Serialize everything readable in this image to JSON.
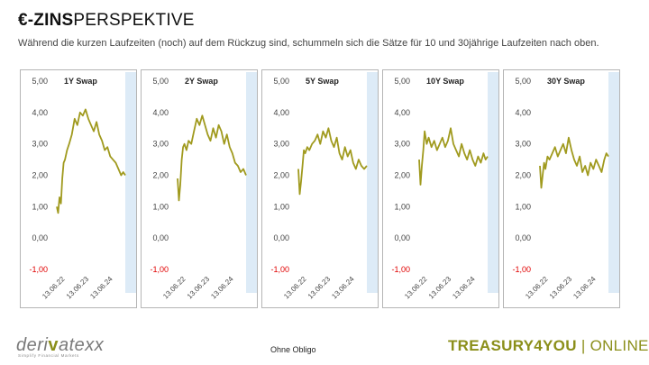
{
  "header": {
    "title_bold": "€-ZINS",
    "title_rest": "PERSPEKTIVE",
    "subtitle": "Während die kurzen Laufzeiten (noch) auf dem Rückzug sind, schummeln sich die Sätze für 10 und 30jährige Laufzeiten nach oben."
  },
  "footer": {
    "logo_pre": "deri",
    "logo_v": "v",
    "logo_post": "atexx",
    "logo_tagline": "Simplify Financial Markets",
    "center": "Ohne Obligo",
    "brand": "TREASURY4YOU",
    "separator": "|",
    "online": "ONLINE"
  },
  "colors": {
    "line": "#a09a1e",
    "forecast_band": "#ddebf7",
    "negative_tick": "#e00000",
    "axis_text": "#444444"
  },
  "chart_data": [
    {
      "type": "line",
      "title": "1Y Swap",
      "ylim": [
        -1,
        5
      ],
      "yticks": [
        5,
        4,
        3,
        2,
        1,
        0,
        -1
      ],
      "ytick_labels": [
        "5,00",
        "4,00",
        "3,00",
        "2,00",
        "1,00",
        "0,00",
        "-1,00"
      ],
      "xticks": [
        "13.06.22",
        "13.06.23",
        "13.06.24"
      ],
      "x": [
        0,
        0.02,
        0.04,
        0.06,
        0.08,
        0.1,
        0.12,
        0.15,
        0.18,
        0.22,
        0.26,
        0.3,
        0.34,
        0.38,
        0.42,
        0.46,
        0.5,
        0.54,
        0.58,
        0.62,
        0.66,
        0.7,
        0.74,
        0.78,
        0.82,
        0.86,
        0.9,
        0.94,
        0.97,
        1.0
      ],
      "values": [
        1.0,
        0.8,
        1.3,
        1.1,
        1.9,
        2.4,
        2.5,
        2.8,
        3.0,
        3.3,
        3.8,
        3.6,
        4.0,
        3.9,
        4.1,
        3.8,
        3.6,
        3.4,
        3.7,
        3.3,
        3.1,
        2.8,
        2.9,
        2.6,
        2.5,
        2.4,
        2.2,
        2.0,
        2.1,
        2.0
      ]
    },
    {
      "type": "line",
      "title": "2Y Swap",
      "ylim": [
        -1,
        5
      ],
      "yticks": [
        5,
        4,
        3,
        2,
        1,
        0,
        -1
      ],
      "ytick_labels": [
        "5,00",
        "4,00",
        "3,00",
        "2,00",
        "1,00",
        "0,00",
        "-1,00"
      ],
      "xticks": [
        "13.06.22",
        "13.06.23",
        "13.06.24"
      ],
      "x": [
        0,
        0.02,
        0.04,
        0.06,
        0.08,
        0.1,
        0.13,
        0.16,
        0.2,
        0.24,
        0.28,
        0.32,
        0.36,
        0.4,
        0.44,
        0.48,
        0.52,
        0.56,
        0.6,
        0.64,
        0.68,
        0.72,
        0.76,
        0.8,
        0.84,
        0.88,
        0.92,
        0.96,
        1.0
      ],
      "values": [
        1.9,
        1.2,
        1.7,
        2.5,
        2.9,
        3.0,
        2.8,
        3.1,
        3.0,
        3.4,
        3.8,
        3.6,
        3.9,
        3.6,
        3.3,
        3.1,
        3.5,
        3.2,
        3.6,
        3.4,
        3.0,
        3.3,
        2.9,
        2.7,
        2.4,
        2.3,
        2.1,
        2.2,
        2.0
      ]
    },
    {
      "type": "line",
      "title": "5Y Swap",
      "ylim": [
        -1,
        5
      ],
      "yticks": [
        5,
        4,
        3,
        2,
        1,
        0,
        -1
      ],
      "ytick_labels": [
        "5,00",
        "4,00",
        "3,00",
        "2,00",
        "1,00",
        "0,00",
        "-1,00"
      ],
      "xticks": [
        "13.06.22",
        "13.06.23",
        "13.06.24"
      ],
      "x": [
        0,
        0.02,
        0.04,
        0.06,
        0.08,
        0.1,
        0.13,
        0.16,
        0.2,
        0.24,
        0.28,
        0.32,
        0.36,
        0.4,
        0.44,
        0.48,
        0.52,
        0.56,
        0.6,
        0.64,
        0.68,
        0.72,
        0.76,
        0.8,
        0.84,
        0.88,
        0.92,
        0.96,
        1.0
      ],
      "values": [
        2.2,
        1.4,
        1.8,
        2.3,
        2.8,
        2.7,
        2.9,
        2.8,
        3.0,
        3.1,
        3.3,
        3.0,
        3.4,
        3.2,
        3.5,
        3.1,
        2.9,
        3.2,
        2.7,
        2.5,
        2.9,
        2.6,
        2.8,
        2.4,
        2.2,
        2.5,
        2.3,
        2.2,
        2.3
      ]
    },
    {
      "type": "line",
      "title": "10Y Swap",
      "ylim": [
        -1,
        5
      ],
      "yticks": [
        5,
        4,
        3,
        2,
        1,
        0,
        -1
      ],
      "ytick_labels": [
        "5,00",
        "4,00",
        "3,00",
        "2,00",
        "1,00",
        "0,00",
        "-1,00"
      ],
      "xticks": [
        "13.06.22",
        "13.06.23",
        "13.06.24"
      ],
      "x": [
        0,
        0.02,
        0.04,
        0.06,
        0.08,
        0.11,
        0.14,
        0.18,
        0.22,
        0.26,
        0.3,
        0.34,
        0.38,
        0.42,
        0.46,
        0.5,
        0.54,
        0.58,
        0.62,
        0.66,
        0.7,
        0.74,
        0.78,
        0.82,
        0.86,
        0.9,
        0.94,
        0.97,
        1.0
      ],
      "values": [
        2.5,
        1.7,
        2.3,
        2.8,
        3.4,
        3.0,
        3.2,
        2.9,
        3.1,
        2.8,
        3.0,
        3.2,
        2.9,
        3.1,
        3.5,
        3.0,
        2.8,
        2.6,
        3.0,
        2.7,
        2.5,
        2.8,
        2.5,
        2.3,
        2.6,
        2.4,
        2.7,
        2.5,
        2.6
      ]
    },
    {
      "type": "line",
      "title": "30Y Swap",
      "ylim": [
        -1,
        5
      ],
      "yticks": [
        5,
        4,
        3,
        2,
        1,
        0,
        -1
      ],
      "ytick_labels": [
        "5,00",
        "4,00",
        "3,00",
        "2,00",
        "1,00",
        "0,00",
        "-1,00"
      ],
      "xticks": [
        "13.06.22",
        "13.06.23",
        "13.06.24"
      ],
      "x": [
        0,
        0.02,
        0.04,
        0.06,
        0.08,
        0.11,
        0.14,
        0.18,
        0.22,
        0.26,
        0.3,
        0.34,
        0.38,
        0.42,
        0.46,
        0.5,
        0.54,
        0.58,
        0.62,
        0.66,
        0.7,
        0.74,
        0.78,
        0.82,
        0.86,
        0.9,
        0.94,
        0.97,
        1.0
      ],
      "values": [
        2.3,
        1.6,
        2.0,
        2.4,
        2.2,
        2.6,
        2.5,
        2.7,
        2.9,
        2.6,
        2.8,
        3.0,
        2.7,
        3.2,
        2.8,
        2.5,
        2.3,
        2.6,
        2.1,
        2.3,
        2.0,
        2.4,
        2.2,
        2.5,
        2.3,
        2.1,
        2.5,
        2.7,
        2.6
      ]
    }
  ]
}
